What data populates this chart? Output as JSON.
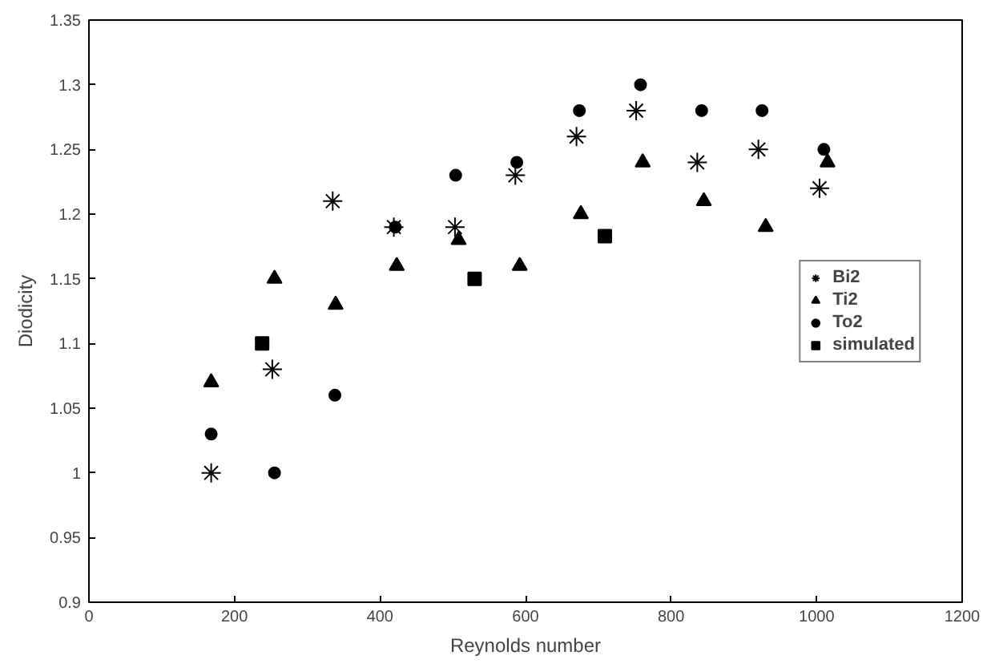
{
  "chart_data": {
    "type": "scatter",
    "xlabel": "Reynolds number",
    "ylabel": "Diodicity",
    "xlim": [
      0,
      1200
    ],
    "xticks": [
      0,
      200,
      400,
      600,
      800,
      1000,
      1200
    ],
    "ylim": [
      0.9,
      1.35
    ],
    "yticks": [
      0.9,
      0.95,
      1,
      1.05,
      1.1,
      1.15,
      1.2,
      1.25,
      1.3,
      1.35
    ],
    "grid": false,
    "legend": "right",
    "series": [
      {
        "name": "Bi2",
        "color": "#000000",
        "marker": "cross",
        "x": [
          168,
          252,
          335,
          419,
          503,
          586,
          670,
          752,
          836,
          920,
          1004
        ],
        "values": [
          1.0,
          1.08,
          1.21,
          1.19,
          1.19,
          1.23,
          1.26,
          1.28,
          1.24,
          1.25,
          1.22
        ]
      },
      {
        "name": "Ti2",
        "color": "#000000",
        "marker": "triangle",
        "x": [
          168,
          255,
          339,
          423,
          508,
          592,
          676,
          761,
          845,
          930,
          1015
        ],
        "values": [
          1.07,
          1.15,
          1.13,
          1.16,
          1.18,
          1.16,
          1.2,
          1.24,
          1.21,
          1.19,
          1.24
        ]
      },
      {
        "name": "To2",
        "color": "#000000",
        "marker": "circle",
        "x": [
          168,
          255,
          338,
          421,
          504,
          588,
          674,
          758,
          842,
          925,
          1010
        ],
        "values": [
          1.03,
          1.0,
          1.06,
          1.19,
          1.23,
          1.24,
          1.28,
          1.3,
          1.28,
          1.28,
          1.25
        ]
      },
      {
        "name": "simulated",
        "color": "#000000",
        "marker": "square",
        "x": [
          238,
          530,
          709
        ],
        "values": [
          1.1,
          1.15,
          1.183
        ]
      }
    ]
  }
}
